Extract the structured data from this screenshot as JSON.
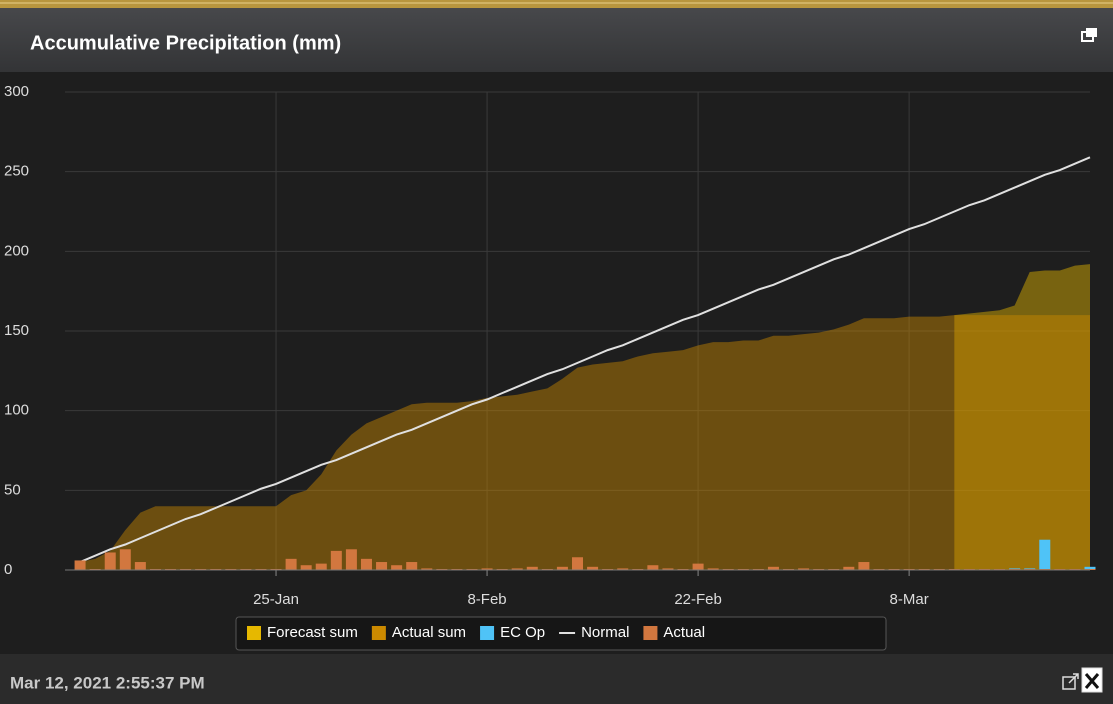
{
  "chart_data": {
    "type": "combo",
    "title": "Accumulative Precipitation (mm)",
    "timestamp": "Mar 12, 2021 2:55:37 PM",
    "x": [
      "12-Jan",
      "13-Jan",
      "14-Jan",
      "15-Jan",
      "16-Jan",
      "17-Jan",
      "18-Jan",
      "19-Jan",
      "20-Jan",
      "21-Jan",
      "22-Jan",
      "23-Jan",
      "24-Jan",
      "25-Jan",
      "26-Jan",
      "27-Jan",
      "28-Jan",
      "29-Jan",
      "30-Jan",
      "31-Jan",
      "1-Feb",
      "2-Feb",
      "3-Feb",
      "4-Feb",
      "5-Feb",
      "6-Feb",
      "7-Feb",
      "8-Feb",
      "9-Feb",
      "10-Feb",
      "11-Feb",
      "12-Feb",
      "13-Feb",
      "14-Feb",
      "15-Feb",
      "16-Feb",
      "17-Feb",
      "18-Feb",
      "19-Feb",
      "20-Feb",
      "21-Feb",
      "22-Feb",
      "23-Feb",
      "24-Feb",
      "25-Feb",
      "26-Feb",
      "27-Feb",
      "28-Feb",
      "1-Mar",
      "2-Mar",
      "3-Mar",
      "4-Mar",
      "5-Mar",
      "6-Mar",
      "7-Mar",
      "8-Mar",
      "9-Mar",
      "10-Mar",
      "11-Mar",
      "12-Mar",
      "13-Mar",
      "14-Mar",
      "15-Mar",
      "16-Mar",
      "17-Mar",
      "18-Mar",
      "19-Mar",
      "20-Mar"
    ],
    "xlim": [
      "11-Jan",
      "20-Mar"
    ],
    "xticks": [
      "25-Jan",
      "8-Feb",
      "22-Feb",
      "8-Mar"
    ],
    "ylim": [
      0,
      300
    ],
    "yticks": [
      0,
      50,
      100,
      150,
      200,
      250,
      300
    ],
    "grid": true,
    "legend": "bottom",
    "series": [
      {
        "name": "Forecast sum",
        "type": "area",
        "color": "#e6b800",
        "values": [
          null,
          null,
          null,
          null,
          null,
          null,
          null,
          null,
          null,
          null,
          null,
          null,
          null,
          null,
          null,
          null,
          null,
          null,
          null,
          null,
          null,
          null,
          null,
          null,
          null,
          null,
          null,
          null,
          null,
          null,
          null,
          null,
          null,
          null,
          null,
          null,
          null,
          null,
          null,
          null,
          null,
          null,
          null,
          null,
          null,
          null,
          null,
          null,
          null,
          null,
          null,
          null,
          null,
          null,
          null,
          null,
          null,
          null,
          160,
          161,
          162,
          163,
          166,
          187,
          188,
          188,
          191,
          192
        ]
      },
      {
        "name": "Actual sum",
        "type": "area",
        "color": "#cc8a00",
        "values": [
          5,
          7,
          12,
          25,
          36,
          40,
          40,
          40,
          40,
          40,
          40,
          40,
          40,
          40,
          47,
          50,
          60,
          75,
          85,
          92,
          96,
          100,
          104,
          105,
          105,
          105,
          106,
          108,
          109,
          110,
          112,
          114,
          120,
          127,
          129,
          130,
          131,
          134,
          136,
          137,
          138,
          141,
          143,
          143,
          144,
          144,
          147,
          147,
          148,
          149,
          151,
          154,
          158,
          158,
          158,
          159,
          159,
          159,
          160,
          160,
          160,
          160,
          160,
          160,
          160,
          160,
          160,
          160
        ]
      },
      {
        "name": "EC Op",
        "type": "bar",
        "color": "#4fc3f7",
        "values": [
          null,
          null,
          null,
          null,
          null,
          null,
          null,
          null,
          null,
          null,
          null,
          null,
          null,
          null,
          null,
          null,
          null,
          null,
          null,
          null,
          null,
          null,
          null,
          null,
          null,
          null,
          null,
          null,
          null,
          null,
          null,
          null,
          null,
          null,
          null,
          null,
          null,
          null,
          null,
          null,
          null,
          null,
          null,
          null,
          null,
          null,
          null,
          null,
          null,
          null,
          null,
          null,
          null,
          null,
          null,
          null,
          null,
          null,
          null,
          null,
          null,
          null,
          1,
          1,
          19,
          null,
          null,
          2
        ]
      },
      {
        "name": "Normal",
        "type": "line",
        "color": "#e0e0e0",
        "values": [
          5,
          9,
          13,
          16,
          20,
          24,
          28,
          32,
          35,
          39,
          43,
          47,
          51,
          54,
          58,
          62,
          66,
          69,
          73,
          77,
          81,
          85,
          88,
          92,
          96,
          100,
          104,
          107,
          111,
          115,
          119,
          123,
          126,
          130,
          134,
          138,
          141,
          145,
          149,
          153,
          157,
          160,
          164,
          168,
          172,
          176,
          179,
          183,
          187,
          191,
          195,
          198,
          202,
          206,
          210,
          214,
          217,
          221,
          225,
          229,
          232,
          236,
          240,
          244,
          248,
          251,
          255,
          259
        ]
      },
      {
        "name": "Actual",
        "type": "bar",
        "color": "#d2773f",
        "values": [
          6,
          0,
          11,
          13,
          5,
          0,
          0,
          0,
          0,
          0,
          0,
          0,
          0,
          0,
          7,
          3,
          4,
          12,
          13,
          7,
          5,
          3,
          5,
          1,
          0,
          0,
          0,
          1,
          0,
          1,
          2,
          0,
          2,
          8,
          2,
          0,
          1,
          0,
          3,
          1,
          0,
          4,
          1,
          0,
          0,
          0,
          2,
          0,
          1,
          0,
          0,
          2,
          5,
          0,
          0,
          0,
          0,
          0,
          0,
          0,
          0,
          0,
          0,
          0,
          0,
          0,
          0,
          0
        ]
      }
    ]
  }
}
